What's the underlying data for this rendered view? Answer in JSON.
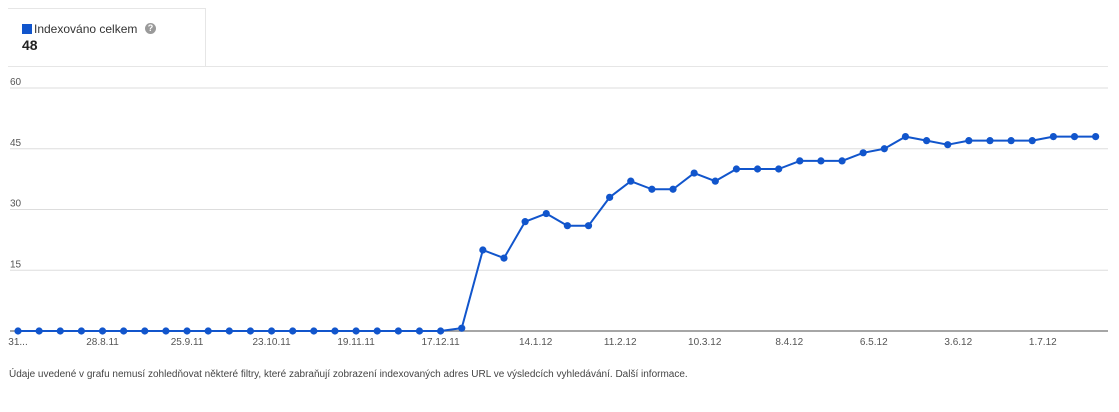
{
  "legend": {
    "label": "Indexováno celkem",
    "value": "48",
    "help_icon": "question-mark-icon"
  },
  "footer": {
    "text": "Údaje uvedené v grafu nemusí zohledňovat některé filtry, které zabraňují zobrazení indexovaných adres URL ve výsledcích vyhledávání.",
    "link": "Další informace."
  },
  "colors": {
    "series": "#1155cc",
    "grid": "#dddddd",
    "axis": "#888888"
  },
  "chart_data": {
    "type": "line",
    "title": "",
    "xlabel": "",
    "ylabel": "",
    "ylim": [
      0,
      60
    ],
    "y_ticks": [
      60,
      45,
      30,
      15
    ],
    "x_tick_labels": [
      {
        "label": "31...",
        "index": 0
      },
      {
        "label": "28.8.11",
        "index": 4
      },
      {
        "label": "25.9.11",
        "index": 8
      },
      {
        "label": "23.10.11",
        "index": 12
      },
      {
        "label": "19.11.11",
        "index": 16
      },
      {
        "label": "17.12.11",
        "index": 20
      },
      {
        "label": "14.1.12",
        "index": 24.5
      },
      {
        "label": "11.2.12",
        "index": 28.5
      },
      {
        "label": "10.3.12",
        "index": 32.5
      },
      {
        "label": "8.4.12",
        "index": 36.5
      },
      {
        "label": "6.5.12",
        "index": 40.5
      },
      {
        "label": "3.6.12",
        "index": 44.5
      },
      {
        "label": "1.7.12",
        "index": 48.5
      }
    ],
    "grid": true,
    "legend": "top-left",
    "series": [
      {
        "name": "Indexováno celkem",
        "values": [
          0,
          0,
          0,
          0,
          0,
          0,
          0,
          0,
          0,
          0,
          0,
          0,
          0,
          0,
          0,
          0,
          0,
          0,
          0,
          0,
          0,
          0.7,
          20,
          18,
          27,
          29,
          26,
          26,
          33,
          37,
          35,
          35,
          39,
          37,
          40,
          40,
          40,
          42,
          42,
          42,
          44,
          45,
          48,
          47,
          46,
          47,
          47,
          47,
          47,
          48,
          48,
          48
        ]
      }
    ]
  }
}
